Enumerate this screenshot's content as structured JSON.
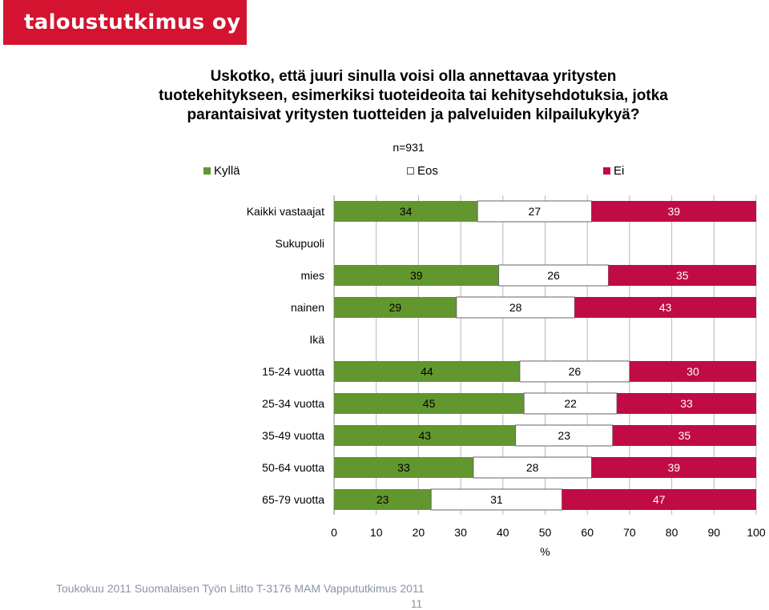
{
  "logo": {
    "text": "taloustutkimus oy"
  },
  "footer": {
    "text": "Toukokuu 2011  Suomalaisen Työn Liitto  T-3176 MAM  Vappututkimus 2011",
    "page_number": "11"
  },
  "colors": {
    "kylla": "#62962e",
    "eos": "#ffffff",
    "ei": "#c10b45",
    "brand": "#d3132f"
  },
  "chart_data": {
    "type": "bar",
    "stacked": true,
    "orientation": "horizontal",
    "title_lines": [
      "Uskotko, että juuri sinulla voisi olla annettavaa yritysten",
      "tuotekehitykseen, esimerkiksi tuoteideoita tai kehitysehdotuksia, jotka",
      "parantaisivat yritysten tuotteiden ja palveluiden kilpailukykyä?"
    ],
    "subtitle": "n=931",
    "xlabel": "%",
    "xlim": [
      0,
      100
    ],
    "xticks": [
      0,
      10,
      20,
      30,
      40,
      50,
      60,
      70,
      80,
      90,
      100
    ],
    "legend": [
      "Kyllä",
      "Eos",
      "Ei"
    ],
    "rows": [
      {
        "label": "Kaikki vastaajat",
        "values": [
          34,
          27,
          39
        ]
      },
      {
        "label": "Sukupuoli",
        "header": true
      },
      {
        "label": "mies",
        "values": [
          39,
          26,
          35
        ]
      },
      {
        "label": "nainen",
        "values": [
          29,
          28,
          43
        ]
      },
      {
        "label": "Ikä",
        "header": true
      },
      {
        "label": "15-24 vuotta",
        "values": [
          44,
          26,
          30
        ]
      },
      {
        "label": "25-34 vuotta",
        "values": [
          45,
          22,
          33
        ]
      },
      {
        "label": "35-49 vuotta",
        "values": [
          43,
          23,
          35
        ]
      },
      {
        "label": "50-64 vuotta",
        "values": [
          33,
          28,
          39
        ]
      },
      {
        "label": "65-79 vuotta",
        "values": [
          23,
          31,
          47
        ]
      }
    ]
  }
}
